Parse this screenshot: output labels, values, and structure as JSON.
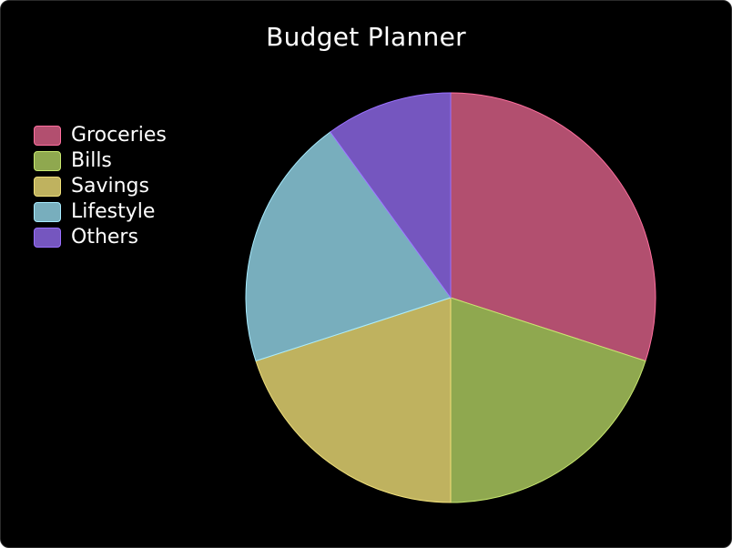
{
  "chart_data": {
    "type": "pie",
    "title": "Budget Planner",
    "legend_position": "left",
    "categories": [
      "Groceries",
      "Bills",
      "Savings",
      "Lifestyle",
      "Others"
    ],
    "values": [
      30,
      20,
      20,
      20,
      10
    ],
    "colors": [
      "#b24f6f",
      "#8fa84f",
      "#bfb25f",
      "#78aebd",
      "#7556bf"
    ],
    "border_colors": [
      "#ff6f9f",
      "#c8e86f",
      "#f0e07a",
      "#a8ecff",
      "#9a70ff"
    ]
  }
}
